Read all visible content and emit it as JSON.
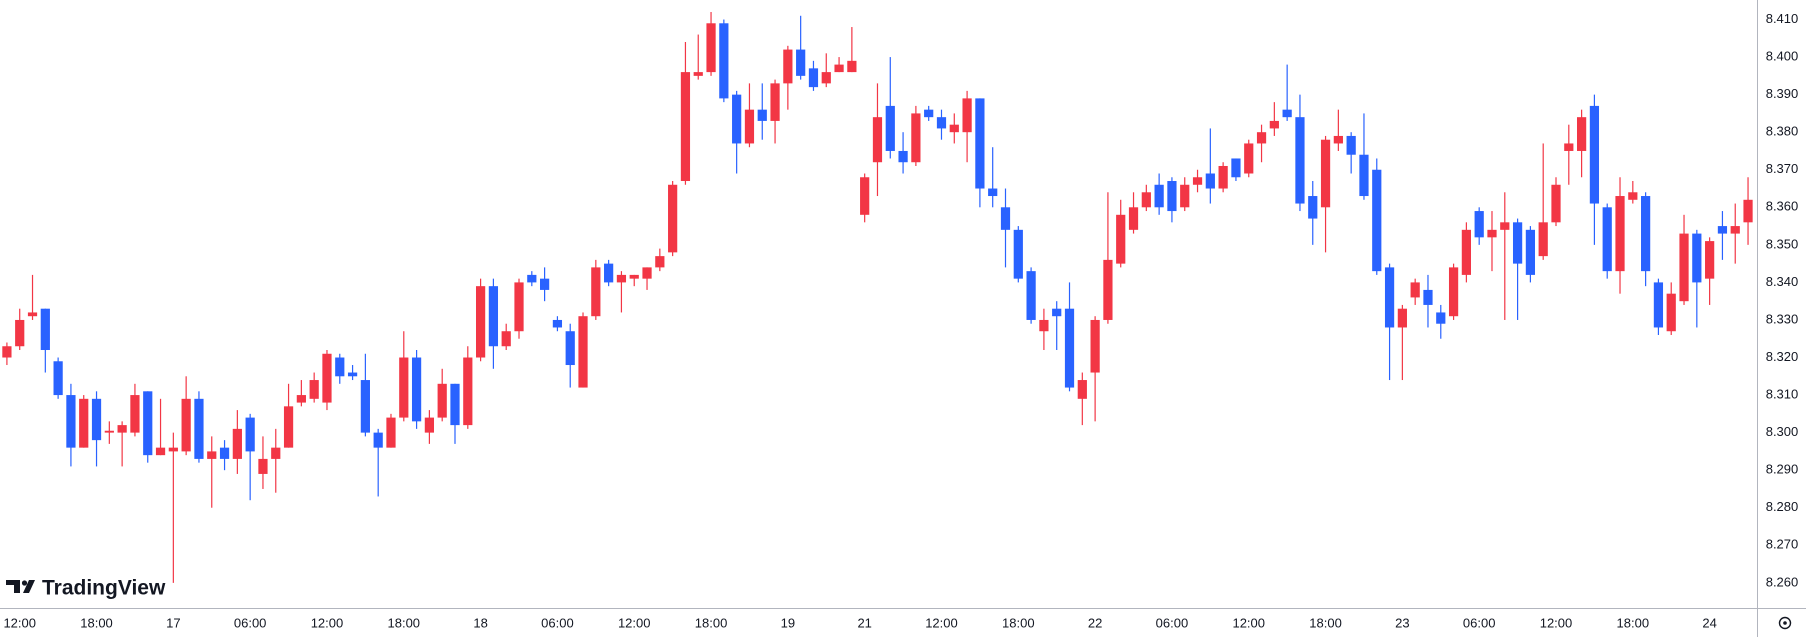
{
  "watermark": "TradingView",
  "chart_data": {
    "type": "candlestick",
    "up_color": "#f23645",
    "down_color": "#2962ff",
    "grid": false,
    "open": [
      8.32,
      8.323,
      8.331,
      8.333,
      8.319,
      8.31,
      8.296,
      8.309,
      8.3,
      8.3,
      8.3,
      8.311,
      8.294,
      8.295,
      8.295,
      8.309,
      8.293,
      8.296,
      8.293,
      8.304,
      8.289,
      8.293,
      8.296,
      8.308,
      8.309,
      8.308,
      8.32,
      8.316,
      8.314,
      8.3,
      8.296,
      8.304,
      8.32,
      8.3,
      8.304,
      8.313,
      8.302,
      8.32,
      8.339,
      8.323,
      8.327,
      8.342,
      8.341,
      8.33,
      8.327,
      8.312,
      8.331,
      8.345,
      8.34,
      8.341,
      8.341,
      8.344,
      8.348,
      8.367,
      8.395,
      8.396,
      8.409,
      8.39,
      8.377,
      8.386,
      8.383,
      8.393,
      8.402,
      8.397,
      8.393,
      8.396,
      8.396,
      8.358,
      8.372,
      8.387,
      8.375,
      8.372,
      8.386,
      8.384,
      8.38,
      8.38,
      8.389,
      8.365,
      8.36,
      8.354,
      8.343,
      8.327,
      8.333,
      8.333,
      8.309,
      8.316,
      8.33,
      8.345,
      8.354,
      8.36,
      8.366,
      8.367,
      8.36,
      8.366,
      8.369,
      8.365,
      8.373,
      8.369,
      8.377,
      8.381,
      8.386,
      8.384,
      8.363,
      8.36,
      8.377,
      8.379,
      8.374,
      8.37,
      8.344,
      8.328,
      8.336,
      8.338,
      8.332,
      8.331,
      8.342,
      8.359,
      8.352,
      8.354,
      8.356,
      8.354,
      8.347,
      8.356,
      8.375,
      8.375,
      8.387,
      8.36,
      8.343,
      8.362,
      8.363,
      8.34,
      8.327,
      8.335,
      8.353,
      8.341,
      8.355,
      8.353,
      8.356
    ],
    "high": [
      8.324,
      8.333,
      8.342,
      8.333,
      8.32,
      8.313,
      8.31,
      8.311,
      8.303,
      8.303,
      8.313,
      8.311,
      8.309,
      8.3,
      8.315,
      8.311,
      8.299,
      8.298,
      8.306,
      8.305,
      8.299,
      8.301,
      8.313,
      8.314,
      8.316,
      8.322,
      8.321,
      8.318,
      8.321,
      8.301,
      8.305,
      8.327,
      8.322,
      8.306,
      8.317,
      8.313,
      8.323,
      8.341,
      8.341,
      8.329,
      8.341,
      8.343,
      8.344,
      8.331,
      8.329,
      8.332,
      8.346,
      8.346,
      8.343,
      8.342,
      8.344,
      8.349,
      8.367,
      8.404,
      8.406,
      8.412,
      8.41,
      8.391,
      8.393,
      8.393,
      8.394,
      8.403,
      8.411,
      8.399,
      8.401,
      8.4,
      8.408,
      8.369,
      8.393,
      8.4,
      8.38,
      8.387,
      8.387,
      8.386,
      8.385,
      8.391,
      8.389,
      8.376,
      8.365,
      8.355,
      8.344,
      8.333,
      8.335,
      8.34,
      8.316,
      8.331,
      8.364,
      8.362,
      8.364,
      8.366,
      8.369,
      8.368,
      8.368,
      8.37,
      8.381,
      8.372,
      8.373,
      8.378,
      8.382,
      8.388,
      8.398,
      8.39,
      8.367,
      8.379,
      8.386,
      8.38,
      8.385,
      8.373,
      8.345,
      8.334,
      8.341,
      8.342,
      8.334,
      8.345,
      8.356,
      8.36,
      8.359,
      8.364,
      8.357,
      8.355,
      8.377,
      8.368,
      8.382,
      8.386,
      8.39,
      8.361,
      8.368,
      8.367,
      8.364,
      8.341,
      8.34,
      8.358,
      8.354,
      8.352,
      8.359,
      8.361,
      8.368
    ],
    "low": [
      8.318,
      8.322,
      8.33,
      8.316,
      8.309,
      8.291,
      8.296,
      8.291,
      8.297,
      8.291,
      8.299,
      8.292,
      8.294,
      8.26,
      8.294,
      8.292,
      8.28,
      8.29,
      8.289,
      8.282,
      8.285,
      8.284,
      8.296,
      8.307,
      8.308,
      8.306,
      8.313,
      8.314,
      8.299,
      8.283,
      8.296,
      8.303,
      8.301,
      8.297,
      8.303,
      8.297,
      8.301,
      8.319,
      8.317,
      8.322,
      8.325,
      8.339,
      8.335,
      8.327,
      8.312,
      8.312,
      8.33,
      8.339,
      8.332,
      8.339,
      8.338,
      8.343,
      8.347,
      8.366,
      8.394,
      8.395,
      8.388,
      8.369,
      8.376,
      8.378,
      8.377,
      8.386,
      8.394,
      8.391,
      8.392,
      8.396,
      8.396,
      8.356,
      8.363,
      8.373,
      8.369,
      8.371,
      8.383,
      8.378,
      8.377,
      8.372,
      8.36,
      8.36,
      8.344,
      8.34,
      8.329,
      8.322,
      8.322,
      8.311,
      8.302,
      8.303,
      8.329,
      8.344,
      8.353,
      8.359,
      8.358,
      8.356,
      8.359,
      8.364,
      8.361,
      8.364,
      8.367,
      8.368,
      8.372,
      8.379,
      8.383,
      8.359,
      8.35,
      8.348,
      8.375,
      8.369,
      8.362,
      8.342,
      8.314,
      8.314,
      8.334,
      8.328,
      8.325,
      8.33,
      8.34,
      8.35,
      8.343,
      8.33,
      8.33,
      8.34,
      8.346,
      8.355,
      8.366,
      8.368,
      8.35,
      8.341,
      8.337,
      8.361,
      8.339,
      8.326,
      8.326,
      8.334,
      8.328,
      8.334,
      8.346,
      8.345,
      8.35
    ],
    "close": [
      8.323,
      8.33,
      8.332,
      8.322,
      8.31,
      8.296,
      8.309,
      8.298,
      8.3005,
      8.302,
      8.31,
      8.294,
      8.296,
      8.296,
      8.309,
      8.293,
      8.295,
      8.293,
      8.301,
      8.295,
      8.293,
      8.296,
      8.307,
      8.31,
      8.314,
      8.321,
      8.315,
      8.315,
      8.3,
      8.296,
      8.304,
      8.32,
      8.303,
      8.304,
      8.313,
      8.302,
      8.32,
      8.339,
      8.323,
      8.327,
      8.34,
      8.34,
      8.338,
      8.328,
      8.318,
      8.331,
      8.344,
      8.34,
      8.342,
      8.342,
      8.344,
      8.347,
      8.366,
      8.396,
      8.396,
      8.409,
      8.389,
      8.377,
      8.386,
      8.383,
      8.393,
      8.402,
      8.395,
      8.392,
      8.396,
      8.398,
      8.399,
      8.368,
      8.384,
      8.375,
      8.372,
      8.385,
      8.384,
      8.381,
      8.382,
      8.389,
      8.365,
      8.363,
      8.354,
      8.341,
      8.33,
      8.33,
      8.331,
      8.312,
      8.314,
      8.33,
      8.346,
      8.358,
      8.36,
      8.364,
      8.36,
      8.359,
      8.366,
      8.368,
      8.365,
      8.371,
      8.368,
      8.377,
      8.38,
      8.383,
      8.384,
      8.361,
      8.357,
      8.378,
      8.379,
      8.374,
      8.363,
      8.343,
      8.328,
      8.333,
      8.34,
      8.334,
      8.329,
      8.344,
      8.354,
      8.352,
      8.354,
      8.356,
      8.345,
      8.342,
      8.356,
      8.366,
      8.377,
      8.384,
      8.361,
      8.343,
      8.363,
      8.364,
      8.343,
      8.328,
      8.337,
      8.353,
      8.34,
      8.351,
      8.353,
      8.355,
      8.362
    ],
    "xlim": [
      -0.54,
      136.7
    ],
    "xticks": [
      {
        "value": 1,
        "label": "12:00"
      },
      {
        "value": 7,
        "label": "18:00"
      },
      {
        "value": 13,
        "label": "17"
      },
      {
        "value": 19,
        "label": "06:00"
      },
      {
        "value": 25,
        "label": "12:00"
      },
      {
        "value": 31,
        "label": "18:00"
      },
      {
        "value": 37,
        "label": "18"
      },
      {
        "value": 43,
        "label": "06:00"
      },
      {
        "value": 49,
        "label": "12:00"
      },
      {
        "value": 55,
        "label": "18:00"
      },
      {
        "value": 61,
        "label": "19"
      },
      {
        "value": 67,
        "label": "21"
      },
      {
        "value": 73,
        "label": "12:00"
      },
      {
        "value": 79,
        "label": "18:00"
      },
      {
        "value": 85,
        "label": "22"
      },
      {
        "value": 91,
        "label": "06:00"
      },
      {
        "value": 97,
        "label": "12:00"
      },
      {
        "value": 103,
        "label": "18:00"
      },
      {
        "value": 109,
        "label": "23"
      },
      {
        "value": 115,
        "label": "06:00"
      },
      {
        "value": 121,
        "label": "12:00"
      },
      {
        "value": 127,
        "label": "18:00"
      },
      {
        "value": 133,
        "label": "24"
      }
    ],
    "ylim": [
      8.2533,
      8.4152
    ],
    "yticks": [
      {
        "value": 8.26,
        "label": "8.260"
      },
      {
        "value": 8.27,
        "label": "8.270"
      },
      {
        "value": 8.28,
        "label": "8.280"
      },
      {
        "value": 8.29,
        "label": "8.290"
      },
      {
        "value": 8.3,
        "label": "8.300"
      },
      {
        "value": 8.31,
        "label": "8.310"
      },
      {
        "value": 8.32,
        "label": "8.320"
      },
      {
        "value": 8.33,
        "label": "8.330"
      },
      {
        "value": 8.34,
        "label": "8.340"
      },
      {
        "value": 8.35,
        "label": "8.350"
      },
      {
        "value": 8.36,
        "label": "8.360"
      },
      {
        "value": 8.37,
        "label": "8.370"
      },
      {
        "value": 8.38,
        "label": "8.380"
      },
      {
        "value": 8.39,
        "label": "8.390"
      },
      {
        "value": 8.4,
        "label": "8.400"
      },
      {
        "value": 8.41,
        "label": "8.410"
      }
    ]
  }
}
